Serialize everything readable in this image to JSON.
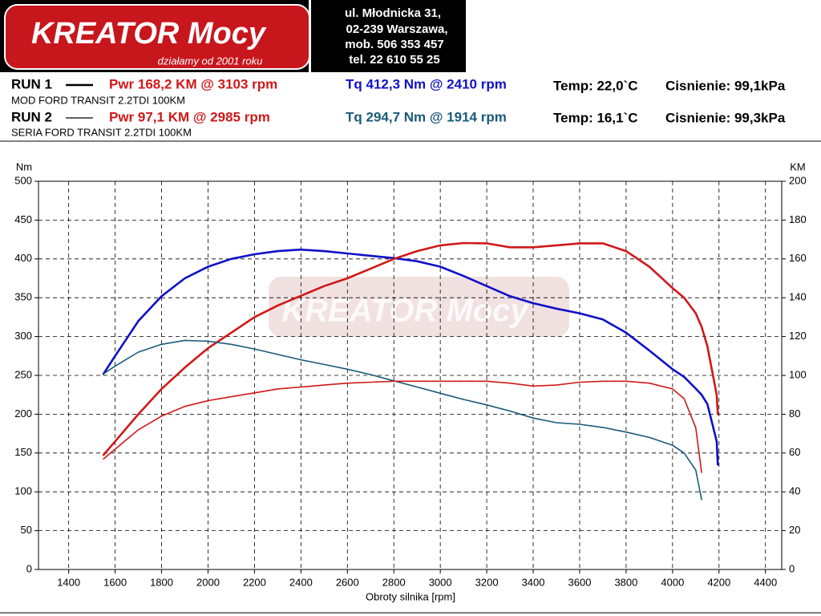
{
  "header": {
    "logo": "KREATOR Mocy",
    "slogan": "działamy od 2001 roku",
    "address": [
      "ul. Młodnicka 31,",
      "02-239  Warszawa,",
      "mob.  506 353 457",
      "tel.  22 610 55 25"
    ]
  },
  "runs": [
    {
      "run": "RUN 1",
      "power": "Pwr  168,2 KM @ 3103 rpm",
      "torque": "Tq 412,3 Nm @ 2410 rpm",
      "temp": "Temp: 22,0`C",
      "pressure": "Cisnienie: 99,1kPa",
      "description": "MOD FORD TRANSIT 2.2TDI 100KM"
    },
    {
      "run": "RUN 2",
      "power": "Pwr  97,1 KM @ 2985 rpm",
      "torque": "Tq 294,7 Nm @ 1914 rpm",
      "temp": "Temp: 16,1`C",
      "pressure": "Cisnienie: 99,3kPa",
      "description": "SERIA FORD TRANSIT 2.2TDI 100KM"
    }
  ],
  "chart_data": {
    "type": "line",
    "watermark": "KREATOR Mocy",
    "xlabel": "Obroty silnika [rpm]",
    "ylabel": "Nm",
    "y2label": "KM",
    "x": [
      1550,
      1600,
      1700,
      1800,
      1900,
      2000,
      2100,
      2200,
      2300,
      2400,
      2500,
      2600,
      2700,
      2800,
      2900,
      3000,
      3100,
      3200,
      3300,
      3400,
      3500,
      3600,
      3700,
      3800,
      3900,
      4000,
      4050,
      4100,
      4125,
      4150,
      4190,
      4195
    ],
    "series": [
      {
        "color": "#1010c8",
        "width": 2.6,
        "axis": "y",
        "values": [
          252,
          275,
          320,
          352,
          375,
          390,
          400,
          406,
          410,
          412,
          410,
          407,
          404,
          401,
          397,
          390,
          378,
          365,
          352,
          343,
          336,
          330,
          322,
          305,
          282,
          258,
          248,
          233,
          225,
          213,
          165,
          135
        ]
      },
      {
        "color": "#d01818",
        "width": 2.6,
        "axis": "y2",
        "values": [
          59,
          66,
          80,
          93,
          104,
          114,
          122,
          130,
          136,
          141,
          146,
          150,
          155,
          160,
          164,
          167,
          168.2,
          168,
          166,
          166,
          167,
          168,
          168,
          164,
          156,
          145,
          140,
          132,
          125,
          115,
          90,
          80
        ]
      },
      {
        "color": "#1a5a78",
        "width": 1.6,
        "axis": "y",
        "values": [
          252,
          262,
          280,
          290,
          295,
          294,
          290,
          284,
          277,
          270,
          264,
          258,
          251,
          243,
          235,
          227,
          219,
          212,
          204,
          195,
          189,
          187,
          183,
          177,
          170,
          160,
          150,
          128,
          90,
          null,
          null,
          null
        ]
      },
      {
        "color": "#d01818",
        "width": 1.6,
        "axis": "y2",
        "values": [
          57,
          62,
          72,
          79,
          84,
          87,
          89,
          91,
          93,
          94,
          95,
          96,
          96.5,
          97,
          97,
          97,
          97,
          97,
          96,
          94.5,
          95,
          96.5,
          97,
          97,
          96,
          93,
          88,
          73,
          50,
          null,
          null,
          null
        ]
      }
    ],
    "xlim": [
      1270,
      4470
    ],
    "xticks": [
      1400,
      1600,
      1800,
      2000,
      2200,
      2400,
      2600,
      2800,
      3000,
      3200,
      3400,
      3600,
      3800,
      4000,
      4200,
      4400
    ],
    "ylim": [
      0,
      500
    ],
    "yticks": [
      0,
      50,
      100,
      150,
      200,
      250,
      300,
      350,
      400,
      450,
      500
    ],
    "y2lim": [
      0,
      200
    ],
    "y2ticks": [
      0,
      20,
      40,
      60,
      80,
      100,
      120,
      140,
      160,
      180,
      200
    ],
    "grid": true
  }
}
